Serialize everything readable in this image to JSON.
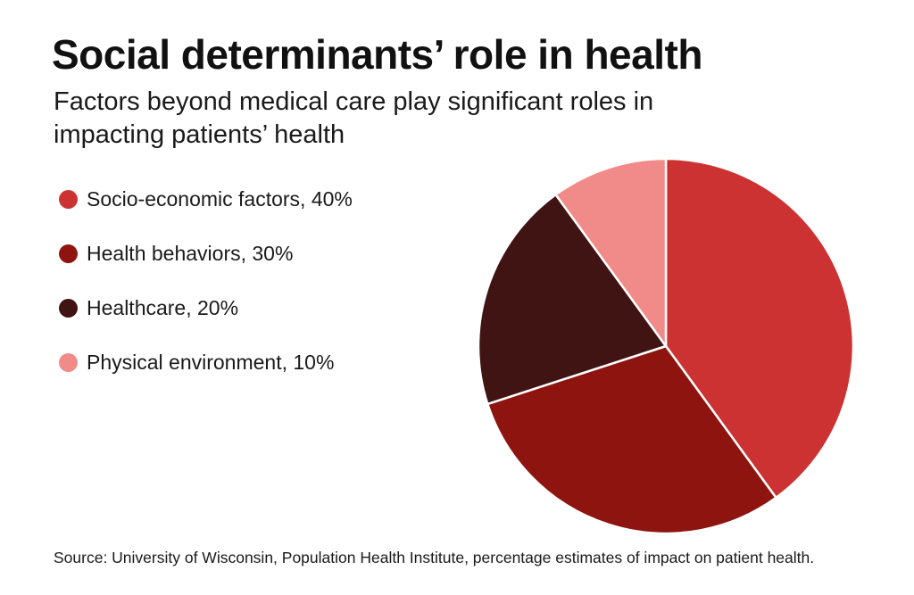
{
  "title": "Social determinants’ role in health",
  "subtitle": "Factors beyond medical care play significant roles in impacting patients’ health",
  "source": "Source: University of Wisconsin, Population Health Institute, percentage estimates of impact on patient health.",
  "chart_data": {
    "type": "pie",
    "title": "Social determinants’ role in health",
    "subtitle": "Factors beyond medical care play significant roles in impacting patients’ health",
    "categories": [
      "Socio-economic factors",
      "Health behaviors",
      "Healthcare",
      "Physical environment"
    ],
    "values": [
      40,
      30,
      20,
      10
    ],
    "unit": "%",
    "legend_labels": [
      "Socio-economic factors, 40%",
      "Health behaviors, 30%",
      "Healthcare, 20%",
      "Physical environment, 10%"
    ],
    "colors": [
      "#cd3232",
      "#8e150f",
      "#401413",
      "#f08b89"
    ],
    "legend_position": "left",
    "start": "top",
    "direction": "clockwise"
  }
}
